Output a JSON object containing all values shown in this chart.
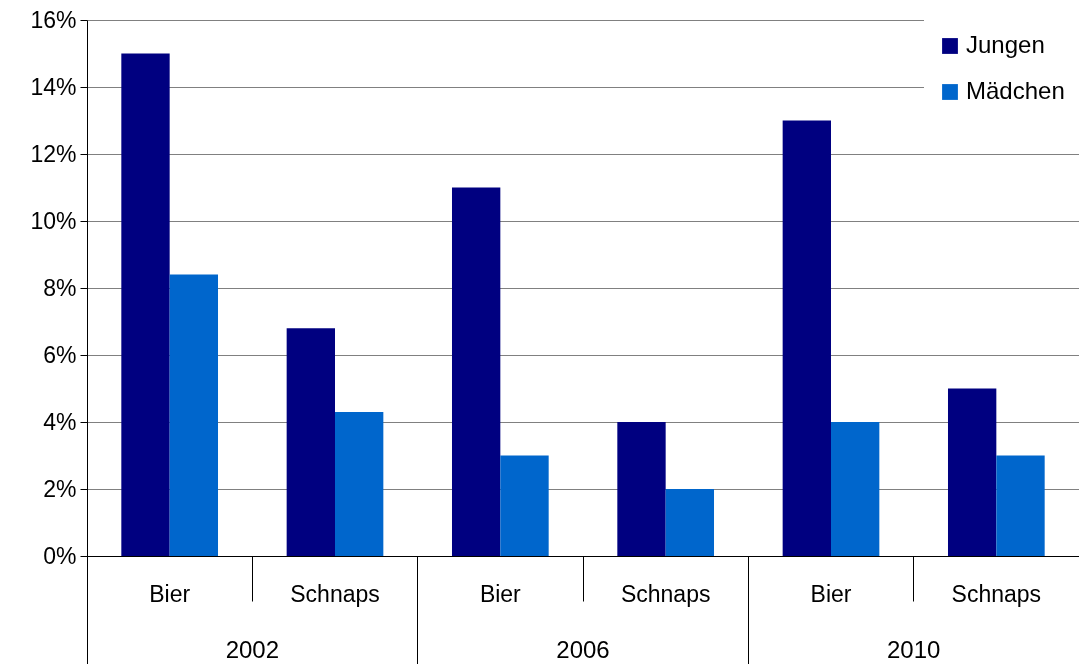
{
  "chart_data": {
    "type": "bar",
    "categories": [
      "Bier",
      "Schnaps",
      "Bier",
      "Schnaps",
      "Bier",
      "Schnaps"
    ],
    "series": [
      {
        "name": "Jungen",
        "color": "#000080",
        "values": [
          15,
          6.8,
          11,
          4,
          13,
          5
        ]
      },
      {
        "name": "Mädchen",
        "color": "#0066cc",
        "values": [
          8.4,
          4.3,
          3,
          2,
          4,
          3
        ]
      }
    ],
    "ylim": [
      0,
      16
    ],
    "yticks": [
      {
        "value": 0,
        "label": "0%"
      },
      {
        "value": 2,
        "label": "2%"
      },
      {
        "value": 4,
        "label": "4%"
      },
      {
        "value": 6,
        "label": "6%"
      },
      {
        "value": 8,
        "label": "8%"
      },
      {
        "value": 10,
        "label": "10%"
      },
      {
        "value": 12,
        "label": "12%"
      },
      {
        "value": 14,
        "label": "14%"
      },
      {
        "value": 16,
        "label": "16%"
      }
    ],
    "annotations": [
      "2002",
      "2006",
      "2010"
    ],
    "grid": "y",
    "legend": "top right"
  }
}
